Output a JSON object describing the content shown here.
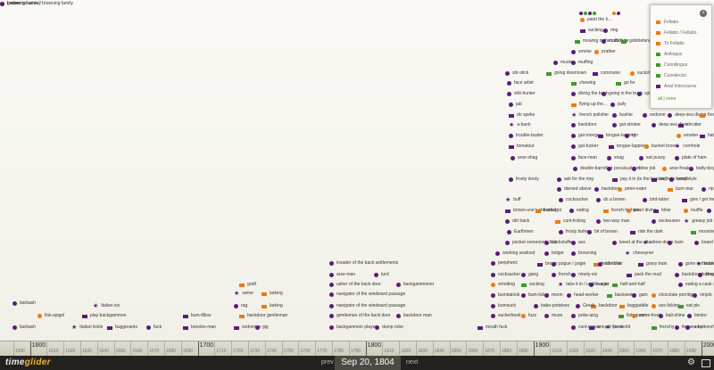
{
  "app": {
    "logo_first": "time",
    "logo_second": "glider"
  },
  "nav": {
    "prev": "prev",
    "date": "Sep 20, 1804",
    "next": "next"
  },
  "legend": {
    "items": [
      {
        "label": "Fellatio",
        "color": "#ea7a17"
      },
      {
        "label": "Fellatio / Fellatio",
        "color": "#ea7a17"
      },
      {
        "label": "To Fellatio",
        "color": "#ea7a17"
      },
      {
        "label": "Anilingus",
        "color": "#3e9a2a"
      },
      {
        "label": "Cunnilingus",
        "color": "#3e9a2a"
      },
      {
        "label": "Cunnilector",
        "color": "#3e9a2a"
      },
      {
        "label": "Anal Intercourse",
        "color": "#5a1d7a"
      }
    ],
    "all": "all",
    "sep": "|",
    "none": "none",
    "close": "×"
  },
  "ruler": {
    "minor": [
      "1590",
      "1610",
      "1620",
      "1630",
      "1640",
      "1650",
      "1660",
      "1670",
      "1680",
      "1690",
      "1710",
      "1720",
      "1730",
      "1740",
      "1750",
      "1760",
      "1770",
      "1780",
      "1790",
      "1810",
      "1820",
      "1830",
      "1840",
      "1850",
      "1860",
      "1870",
      "1880",
      "1890",
      "1910",
      "1920",
      "1930",
      "1940",
      "1950",
      "1960",
      "1970",
      "1980",
      "1990"
    ],
    "major": [
      "1600",
      "1700",
      "1800",
      "1900",
      "2000"
    ]
  },
  "events": [
    {
      "t": "c-p",
      "label": "barbash"
    },
    {
      "t": "c-o",
      "label": "fisk-spigel"
    },
    {
      "t": "c-p",
      "label": "barbash"
    },
    {
      "t": "st",
      "label": "Italian six"
    },
    {
      "t": "st",
      "label": "Italian tickle"
    },
    {
      "t": "f-p",
      "label": "play backgammon"
    },
    {
      "t": "f-p",
      "label": "buggerants"
    },
    {
      "t": "c-p",
      "label": "fuck"
    },
    {
      "t": "f-p",
      "label": "bum-fillow"
    },
    {
      "t": "f-p",
      "label": "bonebo-man"
    },
    {
      "t": "f-o",
      "label": "graft"
    },
    {
      "t": "st",
      "label": "swive"
    },
    {
      "t": "c-p",
      "label": "rag"
    },
    {
      "t": "f-p",
      "label": "sodomise"
    },
    {
      "t": "f-o",
      "label": "larking"
    },
    {
      "t": "f-o",
      "label": "larking"
    },
    {
      "t": "f-o",
      "label": "backdoor gentleman"
    },
    {
      "t": "c-p",
      "label": "gig"
    },
    {
      "t": "c-p",
      "label": "invader of the back settlements"
    },
    {
      "t": "c-p",
      "label": "arse-man"
    },
    {
      "t": "c-p",
      "label": "usher of the back door"
    },
    {
      "t": "c-p",
      "label": "navigator of the windward passage"
    },
    {
      "t": "c-p",
      "label": "navigator of the windward passage"
    },
    {
      "t": "c-p",
      "label": "gentleman of the back door"
    },
    {
      "t": "c-p",
      "label": "backgammon player"
    },
    {
      "t": "c-p",
      "label": "turd"
    },
    {
      "t": "c-p",
      "label": "backgammoner"
    },
    {
      "t": "c-p",
      "label": "backdoor man"
    },
    {
      "t": "c-p",
      "label": "dump robe"
    },
    {
      "t": "f-p",
      "label": "mouth fuck"
    },
    {
      "t": "c-p",
      "label": "peripheric"
    },
    {
      "t": "c-p",
      "label": "cocksucker"
    },
    {
      "t": "c-o",
      "label": "smotting"
    },
    {
      "t": "c-p",
      "label": "bumbalook"
    },
    {
      "t": "c-p",
      "label": "bumsuck"
    },
    {
      "t": "c-p",
      "label": "suckerbook"
    },
    {
      "t": "c-o",
      "label": "fuzz"
    },
    {
      "t": "f-g",
      "label": "sucking"
    },
    {
      "t": "c-p",
      "label": "gang"
    },
    {
      "t": "c-p",
      "label": "bum-licker"
    },
    {
      "t": "c-p",
      "label": "muse"
    },
    {
      "t": "c-p",
      "label": "french"
    },
    {
      "t": "c-p",
      "label": "poke-uing"
    },
    {
      "t": "c-p",
      "label": "moon"
    },
    {
      "t": "c-p",
      "label": "ninety-six"
    },
    {
      "t": "c-p",
      "label": "burger"
    },
    {
      "t": "f-o",
      "label": "backdoor"
    },
    {
      "t": "c-p",
      "label": "cunt-lapper"
    },
    {
      "t": "c-p",
      "label": "babe-potatoes"
    },
    {
      "t": "st",
      "label": "take it in / up the arse"
    },
    {
      "t": "c-p",
      "label": "head-worker"
    },
    {
      "t": "c-p",
      "label": "Greek"
    },
    {
      "t": "f-p",
      "label": "around the world"
    },
    {
      "t": "st",
      "label": "punk"
    },
    {
      "t": "f-g",
      "label": "half-and-half"
    },
    {
      "t": "f-o",
      "label": "buggaddle"
    },
    {
      "t": "c-p",
      "label": "gam"
    },
    {
      "t": "f-g",
      "label": "backswing"
    },
    {
      "t": "f-p",
      "label": "pack the mud"
    },
    {
      "t": "f-g",
      "label": "fish-queen"
    },
    {
      "t": "f-g",
      "label": "frenchy"
    },
    {
      "t": "c-o",
      "label": "come-freak"
    },
    {
      "t": "c-o",
      "label": "chocolate porridge"
    },
    {
      "t": "c-o",
      "label": "ass-licking"
    },
    {
      "t": "f-g",
      "label": "eat pie"
    },
    {
      "t": "c-p",
      "label": "ball-shine"
    },
    {
      "t": "c-p",
      "label": "throw a bottom/make an...nerve"
    },
    {
      "t": "c-p",
      "label": "eating a cauk surprise"
    },
    {
      "t": "c-p",
      "label": "backdoor licking"
    },
    {
      "t": "c-p",
      "label": "bimbo"
    },
    {
      "t": "c-p",
      "label": "cheater"
    },
    {
      "t": "c-p",
      "label": "rimjob"
    },
    {
      "t": "c-p",
      "label": "rump"
    },
    {
      "t": "c-p",
      "label": "working seafood"
    },
    {
      "t": "f-p",
      "label": "brown"
    },
    {
      "t": "c-p",
      "label": "bolger"
    },
    {
      "t": "c-p",
      "label": "pogue / pogie"
    },
    {
      "t": "c-p",
      "label": "browning"
    },
    {
      "t": "f-o",
      "label": "fetch thick"
    },
    {
      "t": "st",
      "label": "cheesyner"
    },
    {
      "t": "c-p",
      "label": "stretcher"
    },
    {
      "t": "f-p",
      "label": "gravy train"
    },
    {
      "t": "c-p",
      "label": "gone in the booty"
    },
    {
      "t": "st",
      "label": "backdoor"
    },
    {
      "t": "c-p",
      "label": "pocket someone's fuck"
    },
    {
      "t": "c-p",
      "label": "backstuffe"
    },
    {
      "t": "c-p",
      "label": "ace"
    },
    {
      "t": "c-p",
      "label": "kneel at the altar"
    },
    {
      "t": "st",
      "label": "show down"
    },
    {
      "t": "c-p",
      "label": "bum"
    },
    {
      "t": "c-p",
      "label": "board ride"
    },
    {
      "t": "c-p",
      "label": "dirt track"
    },
    {
      "t": "f-o",
      "label": "cunt-licking"
    },
    {
      "t": "c-p",
      "label": "two-way man"
    },
    {
      "t": "c-p",
      "label": "sockeusen"
    },
    {
      "t": "st",
      "label": "greasy job"
    },
    {
      "t": "c-p",
      "label": "Earthmen"
    },
    {
      "t": "c-p",
      "label": "frosty bufer"
    },
    {
      "t": "c-p",
      "label": "bit of brown"
    },
    {
      "t": "f-p",
      "label": "ride the dark"
    },
    {
      "t": "f-g",
      "label": "mooning in the saddle"
    },
    {
      "t": "f-p",
      "label": "brown-one's shit string"
    },
    {
      "t": "f-o",
      "label": "backshot"
    },
    {
      "t": "c-p",
      "label": "eating"
    },
    {
      "t": "f-o",
      "label": "french fashion"
    },
    {
      "t": "c-o",
      "label": "pearl diving"
    },
    {
      "t": "f-p",
      "label": "blow"
    },
    {
      "t": "c-o",
      "label": "muffle"
    },
    {
      "t": "c-p",
      "label": "backdoor"
    },
    {
      "t": "st",
      "label": "buff"
    },
    {
      "t": "c-p",
      "label": "cocksucker"
    },
    {
      "t": "c-p",
      "label": "do a brown"
    },
    {
      "t": "c-p",
      "label": "bird-tatter"
    },
    {
      "t": "f-p",
      "label": "give / get head"
    },
    {
      "t": "c-p",
      "label": "darned above"
    },
    {
      "t": "c-p",
      "label": "backdoor"
    },
    {
      "t": "c-o",
      "label": "peter-eater"
    },
    {
      "t": "f-o",
      "label": "bum-tear"
    },
    {
      "t": "c-p",
      "label": "rip it up the quick part"
    },
    {
      "t": "c-p",
      "label": "frosty dooty"
    },
    {
      "t": "c-p",
      "label": "double-barrelled"
    },
    {
      "t": "c-p",
      "label": "pocula-player"
    },
    {
      "t": "c-p",
      "label": "blow job"
    },
    {
      "t": "c-o",
      "label": "arse-freak"
    },
    {
      "t": "c-p",
      "label": "batty-boy"
    },
    {
      "t": "c-p",
      "label": "arse-shag"
    },
    {
      "t": "c-p",
      "label": "face-man"
    },
    {
      "t": "c-p",
      "label": "snag"
    },
    {
      "t": "c-p",
      "label": "eat pussy"
    },
    {
      "t": "c-p",
      "label": "plate of ham"
    },
    {
      "t": "c-p",
      "label": "ask for the ring"
    },
    {
      "t": "f-p",
      "label": "pay it in (to the bootsie)"
    },
    {
      "t": "f-p",
      "label": "asshole-bandit"
    },
    {
      "t": "c-p",
      "label": "army style"
    },
    {
      "t": "f-p",
      "label": "tomatout"
    },
    {
      "t": "c-p",
      "label": "gut-fucker"
    },
    {
      "t": "f-p",
      "label": "tongue-lapping"
    },
    {
      "t": "c-o",
      "label": "bucket brood"
    },
    {
      "t": "st",
      "label": "cornhole"
    },
    {
      "t": "c-p",
      "label": "trouble-buster"
    },
    {
      "t": "c-p",
      "label": "gut-monger"
    },
    {
      "t": "f-p",
      "label": "tongue-lapping"
    },
    {
      "t": "c-p",
      "label": "rim"
    },
    {
      "t": "c-o",
      "label": "smoker"
    },
    {
      "t": "f-p",
      "label": "hat job"
    },
    {
      "t": "st",
      "label": "a-bunk"
    },
    {
      "t": "c-p",
      "label": "backdoor"
    },
    {
      "t": "c-p",
      "label": "gut-stroker"
    },
    {
      "t": "c-p",
      "label": "deep-sea diver"
    },
    {
      "t": "f-p",
      "label": "shrutter"
    },
    {
      "t": "f-p",
      "label": "do speke"
    },
    {
      "t": "st",
      "label": "french polisher"
    },
    {
      "t": "c-p",
      "label": "bushie"
    },
    {
      "t": "c-p",
      "label": "sodome"
    },
    {
      "t": "c-p",
      "label": "deep-sea diving"
    },
    {
      "t": "f-o",
      "label": "french love"
    },
    {
      "t": "c-p",
      "label": "jab"
    },
    {
      "t": "f-o",
      "label": "flying up the..."
    },
    {
      "t": "c-p",
      "label": "pufy"
    },
    {
      "t": "c-p",
      "label": "shit-hunter"
    },
    {
      "t": "c-p",
      "label": "diving the bush"
    },
    {
      "t": "c-p",
      "label": "going in the bush"
    },
    {
      "t": "c-p",
      "label": "spigot-sucker"
    },
    {
      "t": "c-p",
      "label": "face artist"
    },
    {
      "t": "f-g",
      "label": "chewing"
    },
    {
      "t": "f-g",
      "label": "go for"
    },
    {
      "t": "c-p",
      "label": "stir-stick"
    },
    {
      "t": "f-g",
      "label": "going downtown"
    },
    {
      "t": "f-p",
      "label": "commuter"
    },
    {
      "t": "c-o",
      "label": "suckster / suckstress"
    },
    {
      "t": "c-p",
      "label": "muster"
    },
    {
      "t": "c-p",
      "label": "muffing"
    },
    {
      "t": "c-p",
      "label": "smoke"
    },
    {
      "t": "c-o",
      "label": "prather"
    },
    {
      "t": "f-g",
      "label": "mowing in the cabbage"
    },
    {
      "t": "c-p",
      "label": "muff-dive"
    },
    {
      "t": "f-g",
      "label": "gobblefanger"
    },
    {
      "t": "f-p",
      "label": "sucking"
    },
    {
      "t": "c-p",
      "label": "ring"
    },
    {
      "t": "c-o",
      "label": "paint the li..."
    },
    {
      "t": "c-p",
      "label": "battler"
    },
    {
      "t": "c-o",
      "label": "grease (of amks)"
    },
    {
      "t": "c-p",
      "label": "browning tastes / browning family"
    }
  ]
}
